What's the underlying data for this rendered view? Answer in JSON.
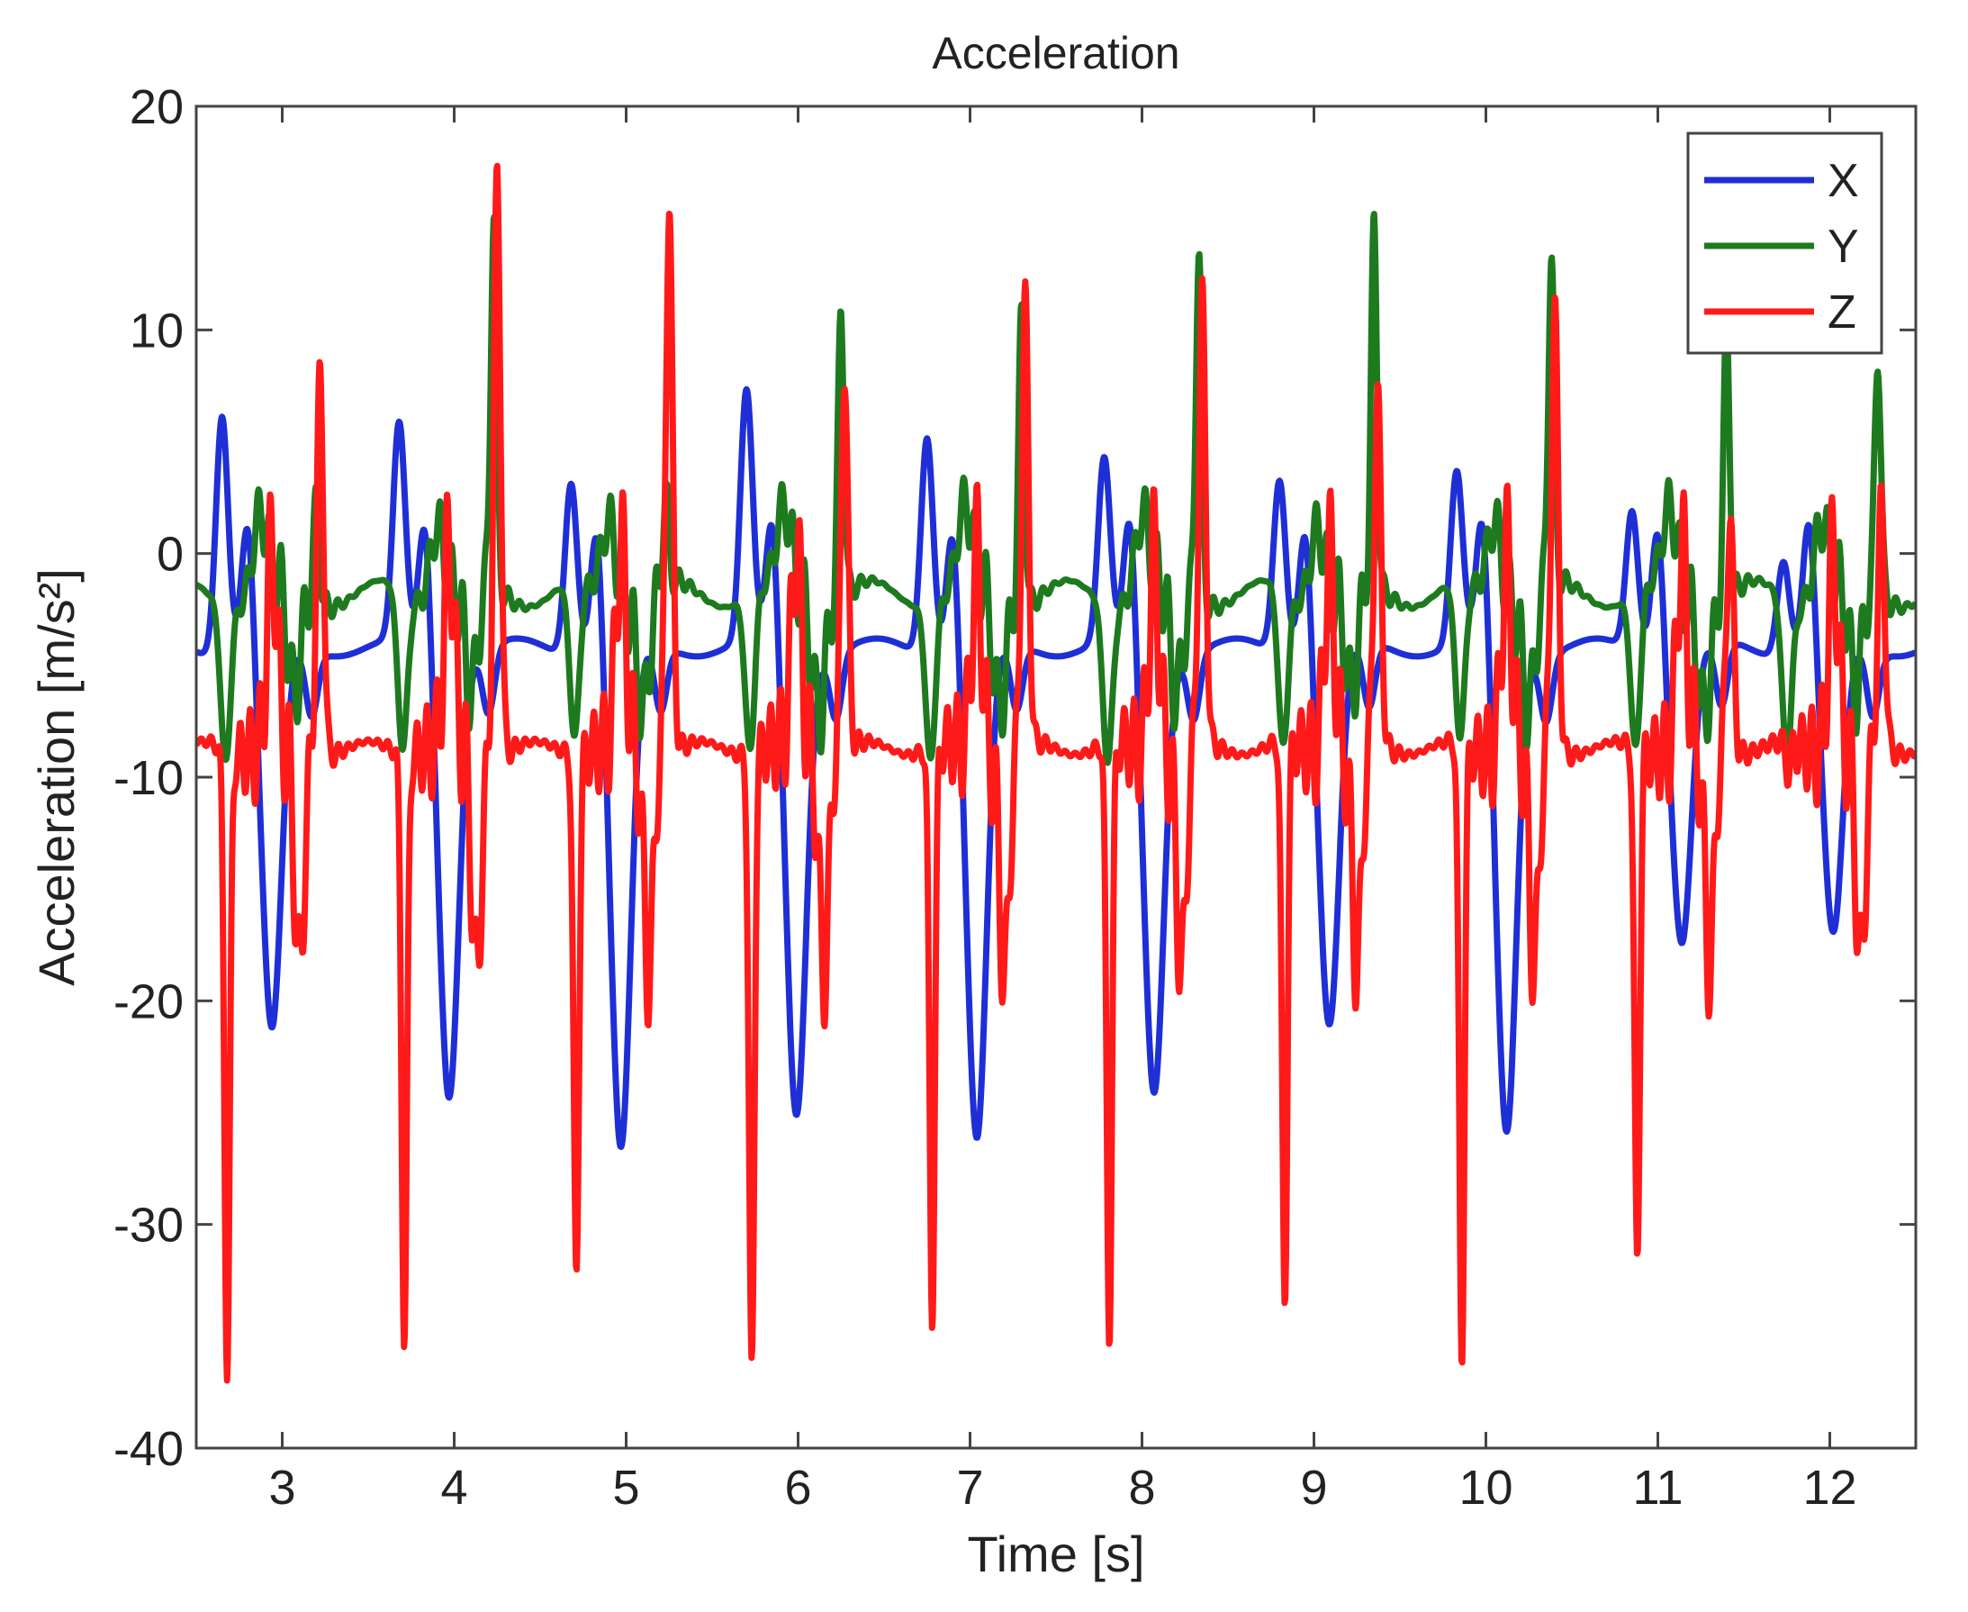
{
  "chart_data": {
    "type": "line",
    "title": "Acceleration",
    "xlabel": "Time [s]",
    "ylabel": "Acceleration [m/s²]",
    "xlim": [
      2.5,
      12.5
    ],
    "ylim": [
      -40,
      20
    ],
    "x_ticks": [
      3,
      4,
      5,
      6,
      7,
      8,
      9,
      10,
      11,
      12
    ],
    "y_ticks": [
      20,
      10,
      0,
      -10,
      -20,
      -30,
      -40
    ],
    "grid": false,
    "legend_position": "top-right",
    "stride_times": [
      2.92,
      3.95,
      4.95,
      5.97,
      7.02,
      8.05,
      9.07,
      10.1,
      11.12,
      12.0
    ],
    "stride_peaks": [
      {
        "x_max": 6.5,
        "x_min": -22.5,
        "y_max": 2.5,
        "z_max": 8,
        "z_min": -36.5
      },
      {
        "x_max": 5.5,
        "x_min": -25,
        "y_max": 15,
        "z_max": 17,
        "z_min": -35
      },
      {
        "x_max": 3.5,
        "x_min": -28,
        "y_max": 2,
        "z_max": 16,
        "z_min": -32
      },
      {
        "x_max": 7,
        "x_min": -26,
        "y_max": 11,
        "z_max": 8.5,
        "z_min": -36.5
      },
      {
        "x_max": 5.5,
        "x_min": -27.5,
        "y_max": 11,
        "z_max": 11,
        "z_min": -34
      },
      {
        "x_max": 4,
        "x_min": -25,
        "y_max": 14,
        "z_max": 11,
        "z_min": -35
      },
      {
        "x_max": 3.5,
        "x_min": -22,
        "y_max": 14,
        "z_max": 7,
        "z_min": -33.5
      },
      {
        "x_max": 3.5,
        "x_min": -27,
        "y_max": 13,
        "z_max": 11,
        "z_min": -36
      },
      {
        "x_max": 2,
        "x_min": -18,
        "y_max": 10,
        "z_max": 2,
        "z_min": -31.5
      },
      {
        "x_max": 0,
        "x_min": -18,
        "y_max": 9,
        "z_max": 2,
        "z_min": -10
      }
    ],
    "series": [
      {
        "name": "X",
        "color": "#1f2fd6",
        "baseline": -4.2
      },
      {
        "name": "Y",
        "color": "#1e7a1e",
        "baseline": -1.8
      },
      {
        "name": "Z",
        "color": "#ff1a1a",
        "baseline": -8.7
      }
    ]
  }
}
